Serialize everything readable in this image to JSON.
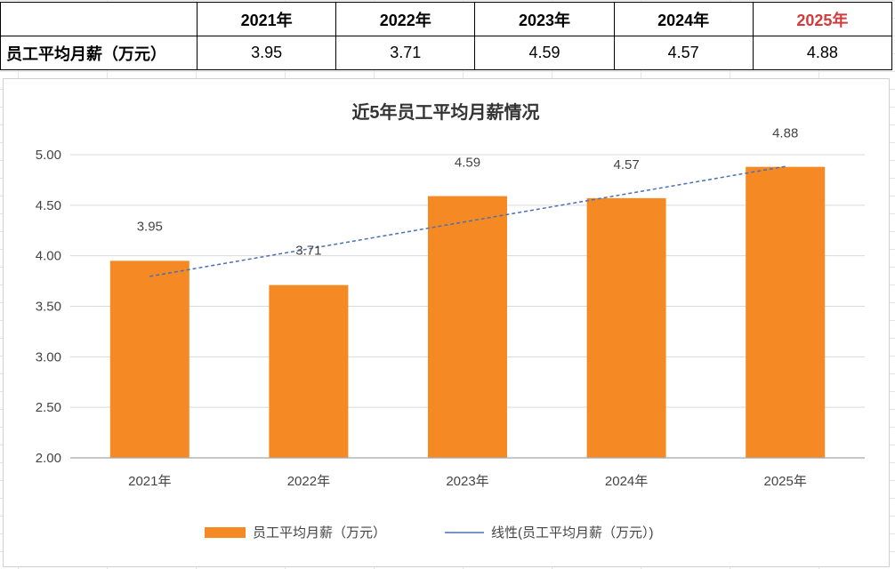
{
  "table": {
    "header_blank": "",
    "years": [
      "2021年",
      "2022年",
      "2023年",
      "2024年",
      "2025年"
    ],
    "row_label": "员工平均月薪（万元）",
    "values_text": [
      "3.95",
      "3.71",
      "4.59",
      "4.57",
      "4.88"
    ],
    "highlight_color": "#d23c3c"
  },
  "chart_data": {
    "type": "bar",
    "title": "近5年员工平均月薪情况",
    "categories": [
      "2021年",
      "2022年",
      "2023年",
      "2024年",
      "2025年"
    ],
    "series": [
      {
        "name": "员工平均月薪（万元）",
        "values": [
          3.95,
          3.71,
          4.59,
          4.57,
          4.88
        ],
        "color": "#f58a25"
      }
    ],
    "trendline": {
      "name": "线性(员工平均月薪（万元）)",
      "type": "linear",
      "color": "#4a6fb5"
    },
    "data_labels": [
      "3.95",
      "3.71",
      "4.59",
      "4.57",
      "4.88"
    ],
    "ylim": [
      2.0,
      5.0
    ],
    "yticks": [
      2.0,
      2.5,
      3.0,
      3.5,
      4.0,
      4.5,
      5.0
    ],
    "ytick_labels": [
      "2.00",
      "2.50",
      "3.00",
      "3.50",
      "4.00",
      "4.50",
      "5.00"
    ],
    "xlabel": "",
    "ylabel": "",
    "grid": true,
    "legend": "bottom-center"
  }
}
